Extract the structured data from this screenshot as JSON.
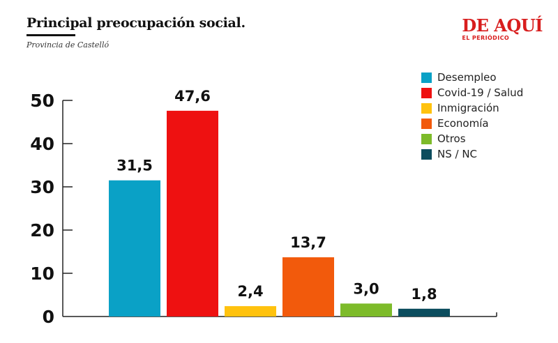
{
  "header": {
    "title": "Principal preocupación social.",
    "subtitle": "Provincia de Castelló"
  },
  "brand": {
    "name": "DE AQUÍ",
    "sub": "EL PERIÓDICO",
    "color": "#d81e1e"
  },
  "chart_data": {
    "type": "bar",
    "title": "Principal preocupación social.",
    "subtitle": "Provincia de Castelló",
    "xlabel": "",
    "ylabel": "",
    "ylim": [
      0,
      50
    ],
    "yticks": [
      0,
      10,
      20,
      30,
      40,
      50
    ],
    "ytick_labels": [
      "0",
      "10",
      "20",
      "30",
      "40",
      "50"
    ],
    "grid": false,
    "legend_position": "top-right",
    "categories": [
      "Desempleo",
      "Covid-19 / Salud",
      "Inmigración",
      "Economía",
      "Otros",
      "NS / NC"
    ],
    "values": [
      31.5,
      47.6,
      2.4,
      13.7,
      3.0,
      1.8
    ],
    "data_labels": [
      "31,5",
      "47,6",
      "2,4",
      "13,7",
      "3,0",
      "1,8"
    ],
    "colors": [
      "#0aa1c6",
      "#ee1111",
      "#ffc20e",
      "#f25a0c",
      "#7dbb2a",
      "#0c4d5e"
    ]
  }
}
